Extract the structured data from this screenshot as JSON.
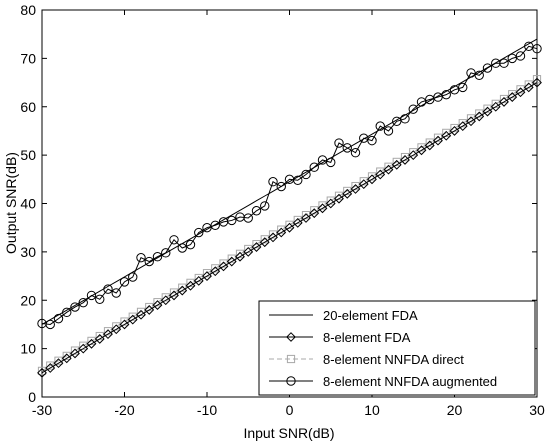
{
  "chart_data": {
    "type": "line",
    "title": "",
    "xlabel": "Input SNR(dB)",
    "ylabel": "Output SNR(dB)",
    "xlim": [
      -30,
      30
    ],
    "ylim": [
      0,
      80
    ],
    "xticks": [
      -30,
      -20,
      -10,
      0,
      10,
      20,
      30
    ],
    "yticks": [
      0,
      10,
      20,
      30,
      40,
      50,
      60,
      70,
      80
    ],
    "grid": false,
    "legend_position": "lower-right",
    "x": [
      -30,
      -29,
      -28,
      -27,
      -26,
      -25,
      -24,
      -23,
      -22,
      -21,
      -20,
      -19,
      -18,
      -17,
      -16,
      -15,
      -14,
      -13,
      -12,
      -11,
      -10,
      -9,
      -8,
      -7,
      -6,
      -5,
      -4,
      -3,
      -2,
      -1,
      0,
      1,
      2,
      3,
      4,
      5,
      6,
      7,
      8,
      9,
      10,
      11,
      12,
      13,
      14,
      15,
      16,
      17,
      18,
      19,
      20,
      21,
      22,
      23,
      24,
      25,
      26,
      27,
      28,
      29,
      30
    ],
    "series": [
      {
        "name": "20-element FDA",
        "color": "#000000",
        "line_style": "solid",
        "marker": "none",
        "values": [
          15,
          15.98,
          16.97,
          17.95,
          18.93,
          19.92,
          20.9,
          21.88,
          22.87,
          23.85,
          24.83,
          25.82,
          26.8,
          27.78,
          28.77,
          29.75,
          30.73,
          31.72,
          32.7,
          33.68,
          34.67,
          35.65,
          36.63,
          37.62,
          38.6,
          39.58,
          40.57,
          41.55,
          42.53,
          43.52,
          44.5,
          45.48,
          46.47,
          47.45,
          48.43,
          49.42,
          50.4,
          51.38,
          52.37,
          53.35,
          54.33,
          55.32,
          56.3,
          57.28,
          58.27,
          59.25,
          60.23,
          61.22,
          62.2,
          63.18,
          64.17,
          65.15,
          66.13,
          67.12,
          68.1,
          69.08,
          70.07,
          71.05,
          72.03,
          73.02,
          74
        ]
      },
      {
        "name": "8-element FDA",
        "color": "#000000",
        "line_style": "solid",
        "marker": "diamond",
        "values": [
          5,
          6,
          7,
          8,
          9,
          10,
          11,
          12,
          13,
          14,
          15,
          16,
          17,
          18,
          19,
          20,
          21,
          22,
          23,
          24,
          25,
          26,
          27,
          28,
          29,
          30,
          31,
          32,
          33,
          34,
          35,
          36,
          37,
          38,
          39,
          40,
          41,
          42,
          43,
          44,
          45,
          46,
          47,
          48,
          49,
          50,
          51,
          52,
          53,
          54,
          55,
          56,
          57,
          58,
          59,
          60,
          61,
          62,
          63,
          64,
          65
        ]
      },
      {
        "name": "8-element NNFDA direct",
        "color": "#a8a8a8",
        "line_style": "dashed",
        "marker": "square",
        "values": [
          5.4,
          6.5,
          7.5,
          8.5,
          9.6,
          10.6,
          11.6,
          12.6,
          13.6,
          14.6,
          15.6,
          16.6,
          17.6,
          18.6,
          19.6,
          20.6,
          21.6,
          22.6,
          23.6,
          24.6,
          25.6,
          26.6,
          27.6,
          28.6,
          29.6,
          30.6,
          31.6,
          32.6,
          33.6,
          34.6,
          35.6,
          36.6,
          37.6,
          38.6,
          39.6,
          40.6,
          41.6,
          42.6,
          43.6,
          44.6,
          45.6,
          46.6,
          47.6,
          48.6,
          49.6,
          50.6,
          51.6,
          52.6,
          53.6,
          54.6,
          55.6,
          56.6,
          57.6,
          58.6,
          59.6,
          60.6,
          61.6,
          62.6,
          63.6,
          64.6,
          65.7
        ]
      },
      {
        "name": "8-element NNFDA augmented",
        "color": "#000000",
        "line_style": "solid",
        "marker": "circle",
        "values": [
          15.2,
          15,
          16.2,
          17.5,
          18.6,
          19.5,
          21,
          20.2,
          22.3,
          21.5,
          23.8,
          24.8,
          28.8,
          28,
          29,
          29.8,
          32.5,
          30.8,
          31.5,
          34,
          35,
          35.5,
          36.2,
          36.5,
          37.2,
          37,
          38.5,
          39.5,
          44.5,
          43.5,
          45,
          44.8,
          46,
          47.5,
          49,
          48.5,
          52.5,
          51.5,
          50.5,
          53.5,
          53,
          56,
          55,
          57,
          57.5,
          59.5,
          61,
          61.5,
          62,
          62.5,
          63.5,
          64,
          67,
          66.5,
          68,
          69,
          69,
          70,
          70.5,
          72.5,
          72
        ]
      }
    ],
    "legend": {
      "entries": [
        "20-element FDA",
        "8-element FDA",
        "8-element NNFDA direct",
        "8-element NNFDA augmented"
      ]
    }
  }
}
